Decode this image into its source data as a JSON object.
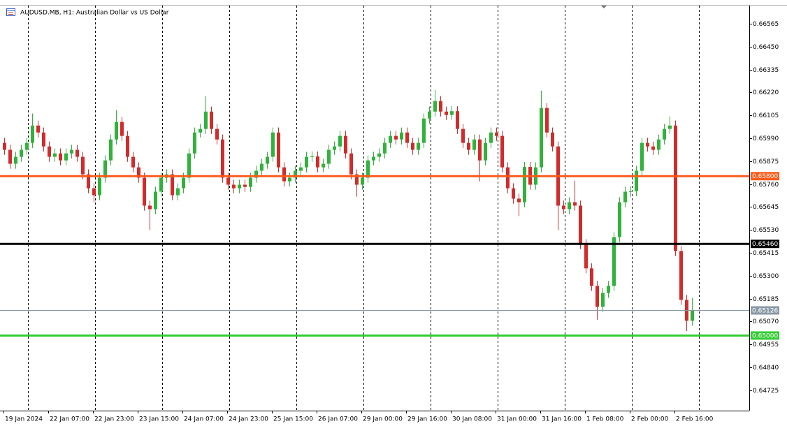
{
  "chart_data": {
    "type": "candlestick",
    "title": "AUDUSD.MB, H1:  Australian Dollar vs US Dollar",
    "up_color": "#2fb33a",
    "down_color": "#d22b2b",
    "grid": true,
    "categories": [
      "19 Jan 2024",
      null,
      null,
      null,
      null,
      null,
      null,
      null,
      "22 Jan 07:00",
      null,
      null,
      null,
      null,
      null,
      null,
      null,
      "22 Jan 23:00",
      null,
      null,
      null,
      null,
      null,
      null,
      null,
      "23 Jan 15:00",
      null,
      null,
      null,
      null,
      null,
      null,
      null,
      "24 Jan 07:00",
      null,
      null,
      null,
      null,
      null,
      null,
      null,
      "24 Jan 23:00",
      null,
      null,
      null,
      null,
      null,
      null,
      null,
      "25 Jan 15:00",
      null,
      null,
      null,
      null,
      null,
      null,
      null,
      "26 Jan 07:00",
      null,
      null,
      null,
      null,
      null,
      null,
      null,
      "29 Jan 00:00",
      null,
      null,
      null,
      null,
      null,
      null,
      null,
      "29 Jan 16:00",
      null,
      null,
      null,
      null,
      null,
      null,
      null,
      "30 Jan 08:00",
      null,
      null,
      null,
      null,
      null,
      null,
      null,
      "31 Jan 00:00",
      null,
      null,
      null,
      null,
      null,
      null,
      null,
      "31 Jan 16:00",
      null,
      null,
      null,
      null,
      null,
      null,
      null,
      "1 Feb 08:00",
      null,
      null,
      null,
      null,
      null,
      null,
      null,
      "2 Feb 00:00",
      null,
      null,
      null,
      null,
      null,
      null,
      null,
      "2 Feb 16:00",
      null,
      null,
      null
    ],
    "open": [
      0.65967,
      0.65932,
      0.65862,
      0.65897,
      0.65932,
      0.65967,
      0.66054,
      0.66019,
      0.65949,
      0.65897,
      0.65914,
      0.65879,
      0.65914,
      0.65932,
      0.65897,
      0.65809,
      0.65739,
      0.65704,
      0.65792,
      0.65879,
      0.65984,
      0.66072,
      0.66002,
      0.65897,
      0.65844,
      0.65792,
      0.65652,
      0.65634,
      0.65722,
      0.65792,
      0.65809,
      0.65704,
      0.65739,
      0.65792,
      0.65914,
      0.66019,
      0.66037,
      0.66124,
      0.66037,
      0.65984,
      0.65792,
      0.65757,
      0.65739,
      0.65757,
      0.65746,
      0.65792,
      0.65827,
      0.65862,
      0.65897,
      0.66019,
      0.65844,
      0.65774,
      0.65792,
      0.65827,
      0.65844,
      0.65897,
      0.65899,
      0.65844,
      0.65862,
      0.65932,
      0.65949,
      0.66002,
      0.65914,
      0.65809,
      0.65757,
      0.65792,
      0.65879,
      0.65897,
      0.65914,
      0.65967,
      0.66002,
      0.65984,
      0.66019,
      0.65967,
      0.65932,
      0.65967,
      0.66089,
      0.66124,
      0.66177,
      0.66124,
      0.66107,
      0.66126,
      0.66037,
      0.65967,
      0.65932,
      0.65984,
      0.65879,
      0.65967,
      0.66019,
      0.66002,
      0.65844,
      0.65739,
      0.65687,
      0.65669,
      0.65846,
      0.65757,
      0.65844,
      0.66142,
      0.66019,
      0.65949,
      0.65652,
      0.65634,
      0.65669,
      0.65652,
      0.65459,
      0.65337,
      0.65249,
      0.65144,
      0.65214,
      0.65249,
      0.65494,
      0.65669,
      0.65722,
      0.65724,
      0.65827,
      0.65967,
      0.65949,
      0.65932,
      0.65984,
      0.66037,
      0.66054,
      0.65424,
      0.65179,
      0.65074
    ],
    "high": [
      0.65992,
      0.65957,
      0.65922,
      0.65957,
      0.65992,
      0.66114,
      0.66079,
      0.66044,
      0.65974,
      0.65939,
      0.65939,
      0.65939,
      0.65957,
      0.65957,
      0.65922,
      0.65834,
      0.65764,
      0.65817,
      0.65904,
      0.66009,
      0.66131,
      0.66097,
      0.66027,
      0.65922,
      0.65869,
      0.65817,
      0.65677,
      0.65747,
      0.65817,
      0.65834,
      0.65834,
      0.65764,
      0.65817,
      0.65939,
      0.66044,
      0.66062,
      0.66201,
      0.66149,
      0.66062,
      0.66009,
      0.65817,
      0.65782,
      0.65782,
      0.65782,
      0.65817,
      0.65852,
      0.65887,
      0.65922,
      0.66044,
      0.66044,
      0.65869,
      0.65817,
      0.65852,
      0.65869,
      0.65922,
      0.65924,
      0.65924,
      0.65887,
      0.65957,
      0.65974,
      0.66027,
      0.66027,
      0.65939,
      0.65834,
      0.65817,
      0.65904,
      0.65922,
      0.65939,
      0.65992,
      0.66027,
      0.66027,
      0.66044,
      0.66044,
      0.65992,
      0.65992,
      0.66114,
      0.66149,
      0.66232,
      0.66202,
      0.66149,
      0.66151,
      0.66151,
      0.66062,
      0.65992,
      0.66009,
      0.66009,
      0.65992,
      0.66044,
      0.66044,
      0.66027,
      0.65869,
      0.65764,
      0.65712,
      0.65871,
      0.65871,
      0.65869,
      0.66229,
      0.66167,
      0.66044,
      0.65974,
      0.65677,
      0.65694,
      0.65777,
      0.65677,
      0.65484,
      0.65362,
      0.65274,
      0.65239,
      0.65274,
      0.65519,
      0.65694,
      0.65747,
      0.65749,
      0.65852,
      0.65992,
      0.65992,
      0.65974,
      0.66009,
      0.66062,
      0.661,
      0.66079,
      0.65449,
      0.65204,
      0.65189
    ],
    "low": [
      0.65907,
      0.65837,
      0.65837,
      0.65872,
      0.65907,
      0.65942,
      0.65994,
      0.65924,
      0.65872,
      0.65872,
      0.65854,
      0.65854,
      0.65889,
      0.65872,
      0.65784,
      0.65714,
      0.65669,
      0.65679,
      0.65767,
      0.65854,
      0.65959,
      0.65977,
      0.65872,
      0.65819,
      0.65767,
      0.65627,
      0.65529,
      0.65609,
      0.65697,
      0.65767,
      0.65679,
      0.65679,
      0.65714,
      0.65767,
      0.65889,
      0.65994,
      0.66012,
      0.66012,
      0.65959,
      0.65767,
      0.65732,
      0.65714,
      0.65714,
      0.65721,
      0.65721,
      0.65767,
      0.65802,
      0.65837,
      0.65872,
      0.65819,
      0.65749,
      0.65749,
      0.65767,
      0.65802,
      0.65819,
      0.65872,
      0.65819,
      0.65819,
      0.65837,
      0.65907,
      0.65924,
      0.65889,
      0.65784,
      0.65697,
      0.65732,
      0.65767,
      0.65854,
      0.65872,
      0.65889,
      0.65942,
      0.65959,
      0.65959,
      0.65942,
      0.65907,
      0.65907,
      0.65942,
      0.66064,
      0.66099,
      0.66099,
      0.66082,
      0.66082,
      0.66012,
      0.65942,
      0.65907,
      0.65907,
      0.65774,
      0.65854,
      0.65942,
      0.65977,
      0.65819,
      0.65714,
      0.65662,
      0.65599,
      0.65644,
      0.65732,
      0.65732,
      0.65819,
      0.65994,
      0.65924,
      0.65529,
      0.65609,
      0.65609,
      0.65627,
      0.65434,
      0.65312,
      0.65224,
      0.65079,
      0.65119,
      0.65189,
      0.65224,
      0.65469,
      0.65644,
      0.65697,
      0.65699,
      0.65802,
      0.65924,
      0.65907,
      0.65907,
      0.65959,
      0.66012,
      0.65399,
      0.65154,
      0.65022,
      0.65049
    ],
    "close": [
      0.65932,
      0.65862,
      0.65897,
      0.65932,
      0.65967,
      0.66054,
      0.66019,
      0.65949,
      0.65897,
      0.65914,
      0.65879,
      0.65914,
      0.65932,
      0.65897,
      0.65809,
      0.65739,
      0.65704,
      0.65792,
      0.65879,
      0.65984,
      0.66072,
      0.66002,
      0.65897,
      0.65844,
      0.65792,
      0.65652,
      0.65634,
      0.65722,
      0.65792,
      0.65809,
      0.65704,
      0.65739,
      0.65792,
      0.65914,
      0.66019,
      0.66037,
      0.66124,
      0.66037,
      0.65984,
      0.65792,
      0.65757,
      0.65739,
      0.65757,
      0.65746,
      0.65792,
      0.65827,
      0.65862,
      0.65897,
      0.66019,
      0.65844,
      0.65774,
      0.65792,
      0.65827,
      0.65844,
      0.65897,
      0.65899,
      0.65844,
      0.65862,
      0.65932,
      0.65949,
      0.66002,
      0.65914,
      0.65809,
      0.65757,
      0.65792,
      0.65879,
      0.65897,
      0.65914,
      0.65967,
      0.66002,
      0.65984,
      0.66019,
      0.65967,
      0.65932,
      0.65967,
      0.66089,
      0.66124,
      0.66177,
      0.66124,
      0.66107,
      0.66126,
      0.66037,
      0.65967,
      0.65932,
      0.65984,
      0.65879,
      0.65967,
      0.66019,
      0.66002,
      0.65844,
      0.65739,
      0.65687,
      0.65669,
      0.65846,
      0.65757,
      0.65844,
      0.66142,
      0.66019,
      0.65949,
      0.65652,
      0.65634,
      0.65669,
      0.65652,
      0.65459,
      0.65337,
      0.65249,
      0.65144,
      0.65214,
      0.65249,
      0.65494,
      0.65669,
      0.65722,
      0.65724,
      0.65827,
      0.65967,
      0.65949,
      0.65932,
      0.65984,
      0.66037,
      0.66054,
      0.65424,
      0.65179,
      0.65074,
      0.65126
    ],
    "ylim": [
      0.64623,
      0.66656
    ],
    "yticks": [
      0.66565,
      {
        "value": 0.6645,
        "label": "0.66450"
      },
      0.66335,
      {
        "value": 0.6622,
        "label": "0.66220"
      },
      0.66105,
      {
        "value": 0.6599,
        "label": "0.65990"
      },
      0.65875,
      {
        "value": 0.6576,
        "label": "0.65760"
      },
      0.65645,
      {
        "value": 0.6553,
        "label": "0.65530"
      },
      0.65415,
      {
        "value": 0.653,
        "label": "0.65300"
      },
      0.65185,
      {
        "value": 0.6507,
        "label": "0.65070"
      },
      0.64955,
      {
        "value": 0.6484,
        "label": "0.64840"
      },
      0.64725
    ],
    "levels": [
      {
        "value": 0.658,
        "label": "0.65800",
        "color": "#ff5a1a"
      },
      {
        "value": 0.6546,
        "label": "0.65460",
        "color": "#000000"
      },
      {
        "value": 0.65126,
        "label": "0.65126",
        "color": "#8a99a6"
      },
      {
        "value": 0.65,
        "label": "0.65000",
        "color": "#33cc33"
      }
    ]
  }
}
